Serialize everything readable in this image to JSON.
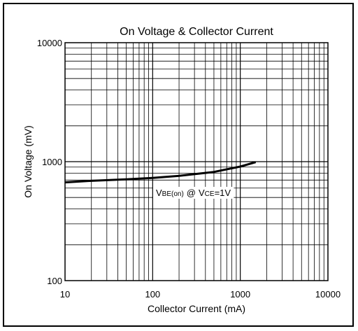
{
  "chart_data": {
    "type": "line",
    "title": "On Voltage & Collector Current",
    "xlabel": "Collector Current (mA)",
    "ylabel": "On Voltage (mV)",
    "x_scale": "log",
    "y_scale": "log",
    "xlim": [
      10,
      10000
    ],
    "ylim": [
      100,
      10000
    ],
    "x_ticks": [
      "10",
      "100",
      "1000",
      "10000"
    ],
    "y_ticks": [
      "100",
      "1000",
      "10000"
    ],
    "grid": true,
    "series": [
      {
        "x": [
          10,
          20,
          50,
          100,
          200,
          500,
          1000,
          1500
        ],
        "y": [
          670,
          690,
          710,
          730,
          760,
          820,
          910,
          990
        ]
      }
    ],
    "annotation": {
      "v1": "V",
      "s1": "BE(on)",
      "at": "@",
      "v2": "V",
      "s2": "CE",
      "tail": "=1V"
    }
  }
}
